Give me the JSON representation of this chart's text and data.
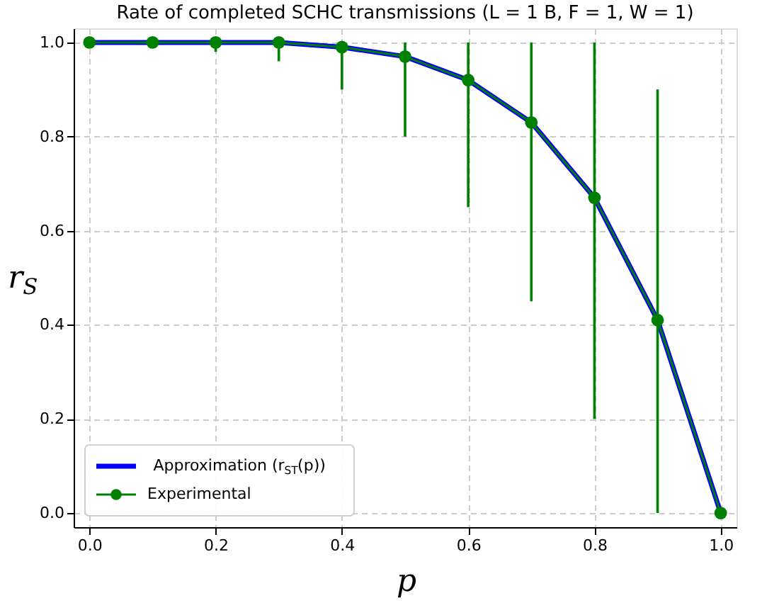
{
  "chart_data": {
    "type": "line",
    "title": "Rate of completed SCHC transmissions (L = 1 B, F = 1, W = 1)",
    "xlabel": "p",
    "ylabel": "r$_{S}$",
    "x": [
      0.0,
      0.1,
      0.2,
      0.3,
      0.4,
      0.5,
      0.6,
      0.7,
      0.8,
      0.9,
      1.0
    ],
    "series": [
      {
        "name": "Approximation (r$_{ST}$(p))",
        "color": "#0000ff",
        "marker": "none",
        "values": [
          1.0,
          1.0,
          1.0,
          1.0,
          0.99,
          0.97,
          0.92,
          0.83,
          0.67,
          0.41,
          0.0
        ]
      },
      {
        "name": "Experimental",
        "color": "#008000",
        "marker": "circle",
        "values": [
          1.0,
          1.0,
          1.0,
          1.0,
          0.99,
          0.97,
          0.92,
          0.83,
          0.67,
          0.41,
          0.0
        ],
        "errors": [
          null,
          null,
          [
            0.98,
            1.0
          ],
          [
            0.96,
            1.0
          ],
          [
            0.9,
            1.0
          ],
          [
            0.8,
            1.0
          ],
          [
            0.65,
            1.0
          ],
          [
            0.45,
            1.0
          ],
          [
            0.2,
            1.0
          ],
          [
            0.0,
            0.9
          ],
          null
        ]
      }
    ],
    "xlim": [
      -0.025,
      1.025
    ],
    "xticks": [
      {
        "value": 0,
        "label": "0.0"
      },
      0.2,
      0.4,
      0.6,
      0.8,
      {
        "value": 1,
        "label": "1.0"
      }
    ],
    "ylim": [
      -0.03,
      1.03
    ],
    "yticks": [
      {
        "value": 0,
        "label": "0.0"
      },
      0.2,
      0.4,
      0.6,
      0.8,
      {
        "value": 1,
        "label": "1.0"
      }
    ],
    "grid": true,
    "legend": "bottom left",
    "line_style": "solid"
  }
}
